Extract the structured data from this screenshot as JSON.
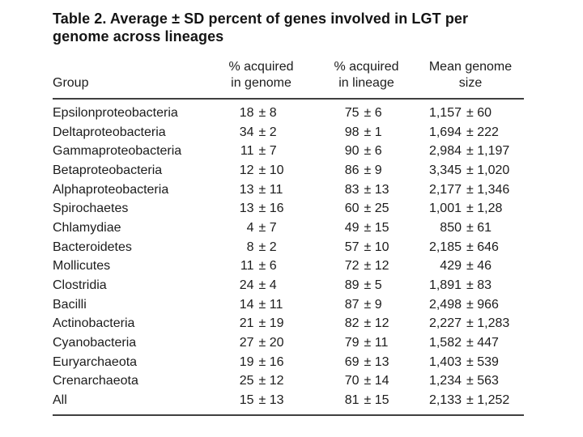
{
  "colors": {
    "background": "#ffffff",
    "text": "#1c1c1c",
    "rule": "#3f3f3f"
  },
  "table": {
    "title_lines": [
      "Table 2. Average ± SD percent of genes involved in LGT per",
      "genome across lineages"
    ],
    "headers": {
      "group": "Group",
      "acquired_genome": "% acquired\nin genome",
      "acquired_lineage": "% acquired\nin lineage",
      "mean_genome_size": "Mean genome\nsize"
    },
    "rows": [
      {
        "group": "Epsilonproteobacteria",
        "g_m": "18",
        "g_s": "± 8",
        "l_m": "75",
        "l_s": "± 6",
        "s_m": "1,157",
        "s_s": "± 60"
      },
      {
        "group": "Deltaproteobacteria",
        "g_m": "34",
        "g_s": "± 2",
        "l_m": "98",
        "l_s": "± 1",
        "s_m": "1,694",
        "s_s": "± 222"
      },
      {
        "group": "Gammaproteobacteria",
        "g_m": "11",
        "g_s": "± 7",
        "l_m": "90",
        "l_s": "± 6",
        "s_m": "2,984",
        "s_s": "± 1,197"
      },
      {
        "group": "Betaproteobacteria",
        "g_m": "12",
        "g_s": "± 10",
        "l_m": "86",
        "l_s": "± 9",
        "s_m": "3,345",
        "s_s": "± 1,020"
      },
      {
        "group": "Alphaproteobacteria",
        "g_m": "13",
        "g_s": "± 11",
        "l_m": "83",
        "l_s": "± 13",
        "s_m": "2,177",
        "s_s": "± 1,346"
      },
      {
        "group": "Spirochaetes",
        "g_m": "13",
        "g_s": "± 16",
        "l_m": "60",
        "l_s": "± 25",
        "s_m": "1,001",
        "s_s": "± 1,28"
      },
      {
        "group": "Chlamydiae",
        "g_m": "4",
        "g_s": "± 7",
        "l_m": "49",
        "l_s": "± 15",
        "s_m": "850",
        "s_s": "± 61"
      },
      {
        "group": "Bacteroidetes",
        "g_m": "8",
        "g_s": "± 2",
        "l_m": "57",
        "l_s": "± 10",
        "s_m": "2,185",
        "s_s": "± 646"
      },
      {
        "group": "Mollicutes",
        "g_m": "11",
        "g_s": "± 6",
        "l_m": "72",
        "l_s": "± 12",
        "s_m": "429",
        "s_s": "± 46"
      },
      {
        "group": "Clostridia",
        "g_m": "24",
        "g_s": "± 4",
        "l_m": "89",
        "l_s": "± 5",
        "s_m": "1,891",
        "s_s": "± 83"
      },
      {
        "group": "Bacilli",
        "g_m": "14",
        "g_s": "± 11",
        "l_m": "87",
        "l_s": "± 9",
        "s_m": "2,498",
        "s_s": "± 966"
      },
      {
        "group": "Actinobacteria",
        "g_m": "21",
        "g_s": "± 19",
        "l_m": "82",
        "l_s": "± 12",
        "s_m": "2,227",
        "s_s": "± 1,283"
      },
      {
        "group": "Cyanobacteria",
        "g_m": "27",
        "g_s": "± 20",
        "l_m": "79",
        "l_s": "± 11",
        "s_m": "1,582",
        "s_s": "± 447"
      },
      {
        "group": "Euryarchaeota",
        "g_m": "19",
        "g_s": "± 16",
        "l_m": "69",
        "l_s": "± 13",
        "s_m": "1,403",
        "s_s": "± 539"
      },
      {
        "group": "Crenarchaeota",
        "g_m": "25",
        "g_s": "± 12",
        "l_m": "70",
        "l_s": "± 14",
        "s_m": "1,234",
        "s_s": "± 563"
      },
      {
        "group": "All",
        "g_m": "15",
        "g_s": "± 13",
        "l_m": "81",
        "l_s": "± 15",
        "s_m": "2,133",
        "s_s": "± 1,252"
      }
    ]
  }
}
